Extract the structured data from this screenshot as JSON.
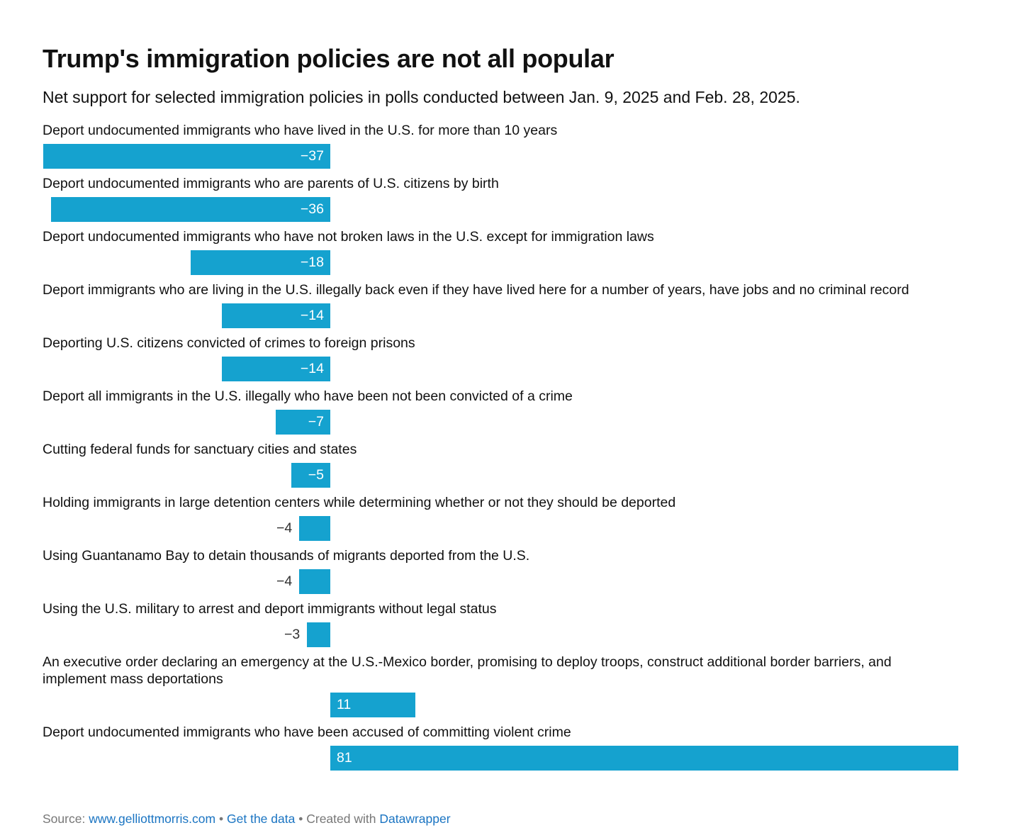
{
  "title": "Trump's immigration policies are not all popular",
  "subtitle": "Net support for selected immigration policies in polls conducted between Jan. 9, 2025 and Feb. 28, 2025.",
  "colors": {
    "bar": "#15a2cf"
  },
  "chart_data": {
    "type": "bar",
    "orientation": "horizontal",
    "title": "Trump's immigration policies are not all popular",
    "subtitle": "Net support for selected immigration policies in polls conducted between Jan. 9, 2025 and Feb. 28, 2025.",
    "xlim": [
      -37,
      81
    ],
    "categories": [
      "Deport undocumented immigrants who have lived in the U.S. for more than 10 years",
      "Deport undocumented immigrants who are parents of U.S. citizens by birth",
      "Deport undocumented immigrants who have not broken laws in the U.S. except for immigration laws",
      "Deport immigrants who are living in the U.S. illegally back even if they have lived here for a number of years, have jobs and no criminal record",
      "Deporting U.S. citizens convicted of crimes to foreign prisons",
      "Deport all immigrants in the U.S. illegally who have been not been convicted of a crime",
      "Cutting federal funds for sanctuary cities and states",
      "Holding immigrants in large detention centers while determining whether or not they should be deported",
      "Using Guantanamo Bay to detain thousands of migrants deported from the U.S.",
      "Using the U.S. military to arrest and deport immigrants without legal status",
      "An executive order declaring an emergency at the U.S.-Mexico border, promising to deploy troops, construct additional border barriers, and implement mass deportations",
      "Deport undocumented immigrants who have been accused of committing violent crime"
    ],
    "values": [
      -37,
      -36,
      -18,
      -14,
      -14,
      -7,
      -5,
      -4,
      -4,
      -3,
      11,
      81
    ],
    "labels": [
      "−37",
      "−36",
      "−18",
      "−14",
      "−14",
      "−7",
      "−5",
      "−4",
      "−4",
      "−3",
      "11",
      "81"
    ]
  },
  "footer": {
    "source_label": "Source:",
    "source_link": "www.gelliottmorris.com",
    "sep1": "•",
    "get_data": "Get the data",
    "sep2": "•",
    "created_with": "Created with",
    "datawrapper": "Datawrapper"
  }
}
